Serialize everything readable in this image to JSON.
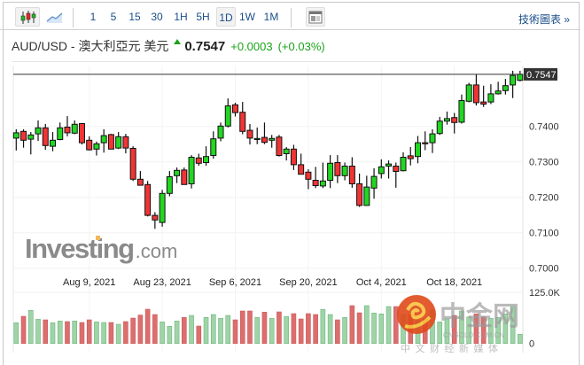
{
  "toolbar": {
    "chart_types": [
      {
        "icon": "candlestick-icon",
        "active": true
      },
      {
        "icon": "area-line-icon",
        "active": false
      }
    ],
    "intervals": [
      "1",
      "5",
      "15",
      "30",
      "1H",
      "5H",
      "1D",
      "1W",
      "1M"
    ],
    "active_interval": "1D",
    "layout_icon": "layout-icon",
    "technical_link": "技術圖表 »"
  },
  "header": {
    "title": "AUD/USD - 澳大利亞元 美元",
    "direction_icon": "up-arrow-icon",
    "price": "0.7547",
    "change": "+0.0003",
    "change_pct": "(+0.03%)",
    "change_color": "#19a319"
  },
  "watermarks": {
    "investing": "Investing.com",
    "cngold_main": "中金网",
    "cngold_url": "CNGOLD.COM.CN",
    "cngold_tagline": "中 文 财 经 新 媒 体"
  },
  "chart_data": {
    "type": "candlestick",
    "colors": {
      "up": "#22d622",
      "down": "#f03434",
      "vol_up": "#9fd4a8",
      "vol_down": "#dd6e6e"
    },
    "last_price_label": "0.7547",
    "y_ticks": [
      "0.7400",
      "0.7300",
      "0.7200",
      "0.7100",
      "0.7000"
    ],
    "y_tick_values": [
      0.74,
      0.73,
      0.72,
      0.71,
      0.7
    ],
    "x_tick_labels": [
      "Aug 9, 2021",
      "Aug 23, 2021",
      "Sep 6, 2021",
      "Sep 20, 2021",
      "Oct 4, 2021",
      "Oct 18, 2021"
    ],
    "volume_ticks": [
      "125.0K",
      "0"
    ],
    "volume_tick_values": [
      125,
      0
    ],
    "volume_unit": "K",
    "ohlc": [
      [
        0.7367,
        0.7392,
        0.7332,
        0.7382
      ],
      [
        0.7386,
        0.7392,
        0.734,
        0.7361
      ],
      [
        0.7364,
        0.7384,
        0.7321,
        0.7376
      ],
      [
        0.7379,
        0.7417,
        0.7359,
        0.7396
      ],
      [
        0.7396,
        0.7407,
        0.7334,
        0.7346
      ],
      [
        0.7344,
        0.7384,
        0.733,
        0.7361
      ],
      [
        0.7363,
        0.7411,
        0.7361,
        0.7396
      ],
      [
        0.7398,
        0.7429,
        0.7372,
        0.7382
      ],
      [
        0.7381,
        0.7417,
        0.7378,
        0.7406
      ],
      [
        0.7408,
        0.7408,
        0.7349,
        0.7354
      ],
      [
        0.7361,
        0.7372,
        0.7332,
        0.7334
      ],
      [
        0.7336,
        0.7357,
        0.7318,
        0.7351
      ],
      [
        0.7354,
        0.7392,
        0.7326,
        0.7374
      ],
      [
        0.7377,
        0.7379,
        0.7336,
        0.7336
      ],
      [
        0.7339,
        0.7384,
        0.7336,
        0.7371
      ],
      [
        0.7371,
        0.7379,
        0.7324,
        0.7339
      ],
      [
        0.7338,
        0.7344,
        0.7246,
        0.7251
      ],
      [
        0.7251,
        0.7274,
        0.7234,
        0.7234
      ],
      [
        0.7236,
        0.7246,
        0.7146,
        0.7149
      ],
      [
        0.7149,
        0.7158,
        0.7111,
        0.7136
      ],
      [
        0.7129,
        0.7221,
        0.7117,
        0.7211
      ],
      [
        0.7211,
        0.7274,
        0.7203,
        0.7258
      ],
      [
        0.7261,
        0.7284,
        0.724,
        0.7276
      ],
      [
        0.7277,
        0.7284,
        0.7236,
        0.7236
      ],
      [
        0.7238,
        0.7319,
        0.7225,
        0.7313
      ],
      [
        0.7311,
        0.7323,
        0.7289,
        0.7296
      ],
      [
        0.7298,
        0.7344,
        0.7289,
        0.7315
      ],
      [
        0.7318,
        0.7386,
        0.7309,
        0.7365
      ],
      [
        0.7367,
        0.7411,
        0.7358,
        0.7401
      ],
      [
        0.7401,
        0.7479,
        0.7397,
        0.7458
      ],
      [
        0.7461,
        0.7467,
        0.7428,
        0.7439
      ],
      [
        0.744,
        0.7469,
        0.7378,
        0.7386
      ],
      [
        0.7389,
        0.7407,
        0.7349,
        0.7367
      ],
      [
        0.7365,
        0.7397,
        0.735,
        0.7366
      ],
      [
        0.7369,
        0.7411,
        0.735,
        0.7355
      ],
      [
        0.7361,
        0.7376,
        0.734,
        0.7366
      ],
      [
        0.737,
        0.7376,
        0.7315,
        0.7318
      ],
      [
        0.7323,
        0.7342,
        0.7304,
        0.7336
      ],
      [
        0.7336,
        0.7348,
        0.7277,
        0.7292
      ],
      [
        0.7292,
        0.7323,
        0.7265,
        0.7265
      ],
      [
        0.7271,
        0.7279,
        0.7223,
        0.7251
      ],
      [
        0.7248,
        0.7286,
        0.7226,
        0.7233
      ],
      [
        0.7232,
        0.7298,
        0.7226,
        0.7246
      ],
      [
        0.7248,
        0.7319,
        0.7226,
        0.7296
      ],
      [
        0.7298,
        0.7319,
        0.724,
        0.7261
      ],
      [
        0.7261,
        0.7298,
        0.7248,
        0.7288
      ],
      [
        0.7288,
        0.7313,
        0.7227,
        0.7238
      ],
      [
        0.7238,
        0.7267,
        0.7173,
        0.7177
      ],
      [
        0.7177,
        0.7261,
        0.7176,
        0.7229
      ],
      [
        0.7226,
        0.7282,
        0.7196,
        0.7259
      ],
      [
        0.7267,
        0.7307,
        0.7253,
        0.7286
      ],
      [
        0.7288,
        0.7304,
        0.7253,
        0.7294
      ],
      [
        0.7288,
        0.7298,
        0.7227,
        0.7273
      ],
      [
        0.7275,
        0.7327,
        0.7273,
        0.7313
      ],
      [
        0.7317,
        0.7342,
        0.729,
        0.7309
      ],
      [
        0.7315,
        0.7373,
        0.7296,
        0.7354
      ],
      [
        0.7354,
        0.7386,
        0.7333,
        0.7353
      ],
      [
        0.7354,
        0.7392,
        0.7325,
        0.7379
      ],
      [
        0.738,
        0.7427,
        0.7376,
        0.7415
      ],
      [
        0.7415,
        0.7442,
        0.7405,
        0.7422
      ],
      [
        0.7425,
        0.7438,
        0.738,
        0.7411
      ],
      [
        0.7412,
        0.749,
        0.7408,
        0.7473
      ],
      [
        0.7471,
        0.7523,
        0.7468,
        0.7517
      ],
      [
        0.7517,
        0.7548,
        0.7459,
        0.7467
      ],
      [
        0.7469,
        0.7515,
        0.7455,
        0.7463
      ],
      [
        0.7469,
        0.7519,
        0.7463,
        0.7492
      ],
      [
        0.7492,
        0.7526,
        0.749,
        0.75
      ],
      [
        0.7501,
        0.7534,
        0.749,
        0.7515
      ],
      [
        0.7517,
        0.7557,
        0.748,
        0.7544
      ],
      [
        0.753,
        0.7557,
        0.7527,
        0.7547
      ]
    ],
    "volume": [
      50.6,
      66.5,
      80.9,
      59.2,
      57.8,
      50.6,
      54.9,
      53.5,
      54.9,
      51.3,
      57.8,
      52.7,
      51.3,
      51.3,
      47.0,
      53.5,
      62.1,
      69.4,
      83.8,
      70.8,
      52.7,
      41.9,
      54.9,
      63.6,
      68.6,
      42.6,
      63.6,
      70.8,
      61.4,
      68.6,
      57.8,
      79.5,
      79.5,
      63.6,
      76.6,
      61.4,
      77.3,
      65.7,
      73.0,
      60.0,
      73.0,
      70.8,
      83.1,
      70.8,
      57.8,
      63.6,
      92.5,
      75.1,
      92.5,
      74.4,
      72.3,
      90.3,
      90.3,
      70.8,
      70.8,
      61.4,
      60.0,
      81.6,
      52.7,
      60.0,
      68.6,
      79.5,
      65.0,
      72.3,
      65.0,
      61.4,
      63.6,
      72.3,
      90.3,
      22.4
    ]
  }
}
